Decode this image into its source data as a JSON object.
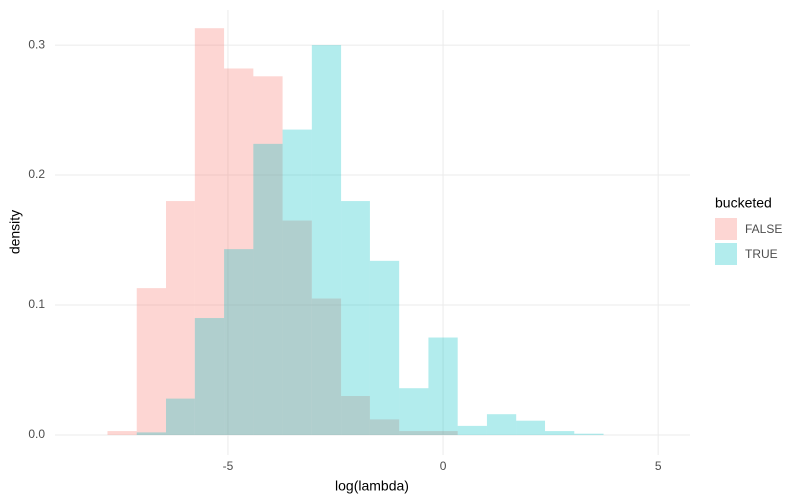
{
  "chart_data": {
    "type": "histogram",
    "x_label": "log(lambda)",
    "y_label": "density",
    "legend_title": "bucketed",
    "bins": [
      -7.8,
      -7.12,
      -6.44,
      -5.77,
      -5.09,
      -4.41,
      -3.73,
      -3.05,
      -2.37,
      -1.7,
      -1.02,
      -0.34,
      0.34,
      1.02,
      1.7,
      2.37,
      3.05,
      3.73
    ],
    "series": [
      {
        "name": "FALSE",
        "color": "#F8766D",
        "values": [
          0.003,
          0.113,
          0.18,
          0.313,
          0.282,
          0.276,
          0.165,
          0.105,
          0.03,
          0.012,
          0.003,
          0.003,
          0,
          0,
          0,
          0,
          0
        ]
      },
      {
        "name": "TRUE",
        "color": "#00BFC4",
        "values": [
          0,
          0.002,
          0.028,
          0.09,
          0.143,
          0.224,
          0.235,
          0.3,
          0.18,
          0.134,
          0.036,
          0.075,
          0.007,
          0.016,
          0.011,
          0.003,
          0.001
        ]
      }
    ],
    "opacity": 0.3,
    "xlim": [
      -9.02,
      5.74
    ],
    "ylim": [
      -0.0154,
      0.327
    ],
    "xticks": [
      -5,
      0,
      5
    ],
    "yticks": [
      {
        "value": 0,
        "label": "0.0"
      },
      0.1,
      0.2,
      0.3
    ],
    "grid": true
  }
}
